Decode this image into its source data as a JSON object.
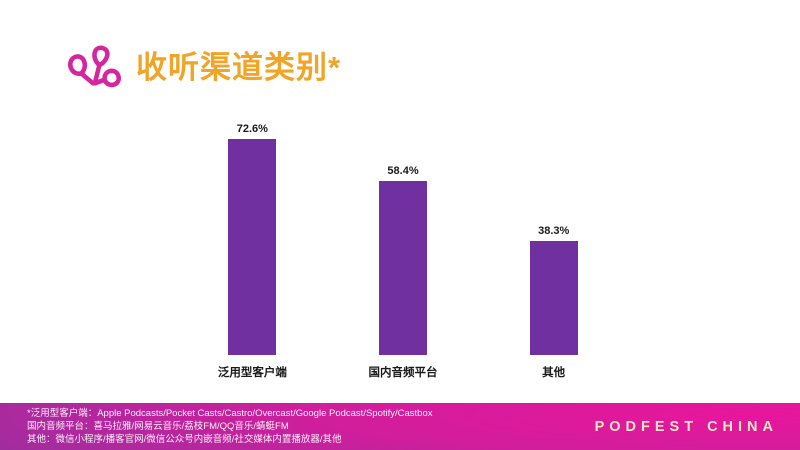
{
  "header": {
    "title": "收听渠道类别*",
    "logo_icon": "podfest-knot-icon"
  },
  "chart_data": {
    "type": "bar",
    "title": "收听渠道类别*",
    "categories": [
      "泛用型客户端",
      "国内音频平台",
      "其他"
    ],
    "values": [
      72.6,
      58.4,
      38.3
    ],
    "value_labels": [
      "72.6%",
      "58.4%",
      "38.3%"
    ],
    "unit": "%",
    "bar_color": "#7030A0",
    "ylim": [
      0,
      80
    ],
    "grid": false,
    "axes_visible": false,
    "legend": "none",
    "value_label_position": "above-bar"
  },
  "footer": {
    "notes": [
      "*泛用型客户端：Apple Podcasts/Pocket Casts/Castro/Overcast/Google Podcast/Spotify/Castbox",
      "国内音频平台：喜马拉雅/网易云音乐/荔枝FM/QQ音乐/蜻蜓FM",
      "其他：微信小程序/播客官网/微信公众号内嵌音频/社交媒体内置播放器/其他"
    ],
    "brand": "PODFEST CHINA"
  },
  "colors": {
    "background": "#FFFFFF",
    "title_text": "#F0A428",
    "logo_pink": "#D4269E",
    "bar_purple": "#7030A0",
    "label_text": "#1A1A1A",
    "footer_gradient_left": "#7E2B90",
    "footer_gradient_right": "#E8169C",
    "footnote_text": "#FFFFFF",
    "brand_text": "#F5E6BE"
  }
}
